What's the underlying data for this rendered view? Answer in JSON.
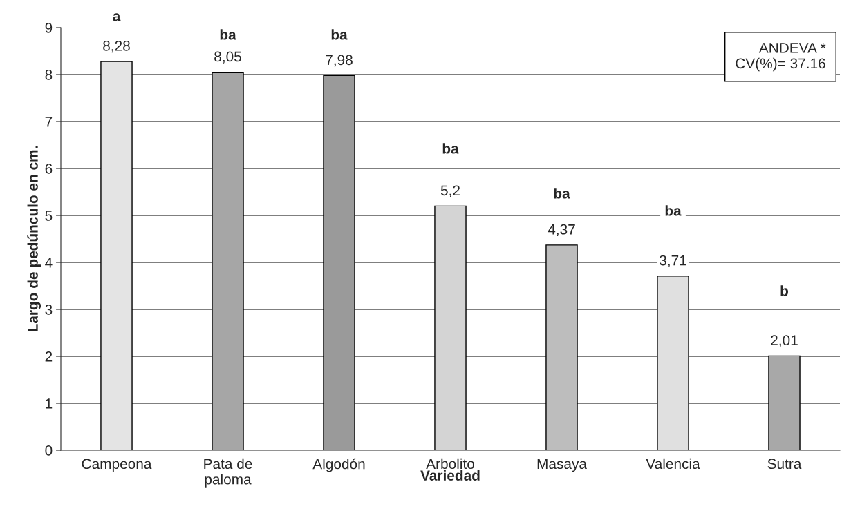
{
  "chart_data": {
    "type": "bar",
    "xlabel": "Variedad",
    "ylabel": "Largo de pedúnculo en cm.",
    "categories": [
      "Campeona",
      "Pata de paloma",
      "Algodón",
      "Arbolito",
      "Masaya",
      "Valencia",
      "Sutra"
    ],
    "values": [
      8.28,
      8.05,
      7.98,
      5.2,
      4.37,
      3.71,
      2.01
    ],
    "value_labels": [
      "8,28",
      "8,05",
      "7,98",
      "5,2",
      "4,37",
      "3,71",
      "2,01"
    ],
    "colors": [
      "#e4e4e4",
      "#a6a6a6",
      "#9a9a9a",
      "#d4d4d4",
      "#bdbdbd",
      "#e0e0e0",
      "#a8a8a8"
    ],
    "ylim": [
      0,
      9
    ],
    "yticks": [
      0,
      1,
      2,
      3,
      4,
      5,
      6,
      7,
      8,
      9
    ],
    "grid": "y",
    "annotations": [
      "a",
      "ba",
      "ba",
      "ba",
      "ba",
      "ba",
      "b",
      "ANDEVA *\nCV(%)= 37.16"
    ]
  }
}
